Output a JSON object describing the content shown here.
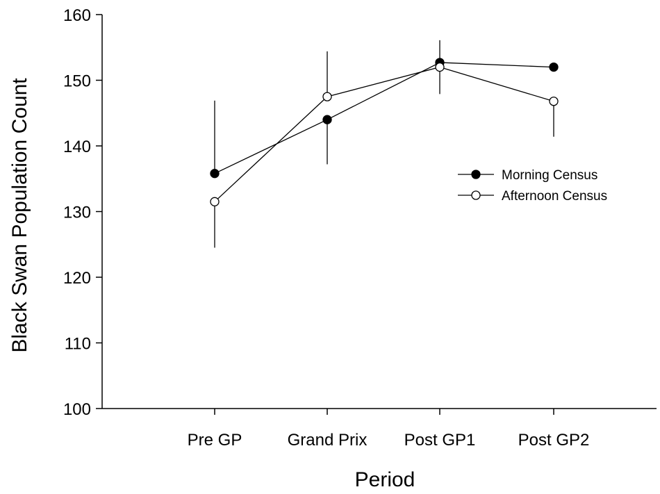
{
  "chart_data": {
    "type": "line",
    "title": "",
    "xlabel": "Period",
    "ylabel": "Black Swan Population Count",
    "categories": [
      "Pre GP",
      "Grand Prix",
      "Post GP1",
      "Post GP2"
    ],
    "ylim": [
      100,
      160
    ],
    "yticks": [
      100,
      110,
      120,
      130,
      140,
      150,
      160
    ],
    "grid": false,
    "legend": "center-right",
    "series": [
      {
        "name": "Morning Census",
        "marker": "filled-circle",
        "color": "#000000",
        "values": [
          135.8,
          144.0,
          152.7,
          152.0
        ],
        "err_low": [
          null,
          137.2,
          null,
          null
        ],
        "err_high": [
          146.9,
          null,
          156.1,
          null
        ]
      },
      {
        "name": "Afternoon Census",
        "marker": "open-circle",
        "color": "#000000",
        "values": [
          131.5,
          147.5,
          152.0,
          146.8
        ],
        "err_low": [
          124.5,
          null,
          147.9,
          141.4
        ],
        "err_high": [
          null,
          154.4,
          null,
          null
        ]
      }
    ]
  }
}
